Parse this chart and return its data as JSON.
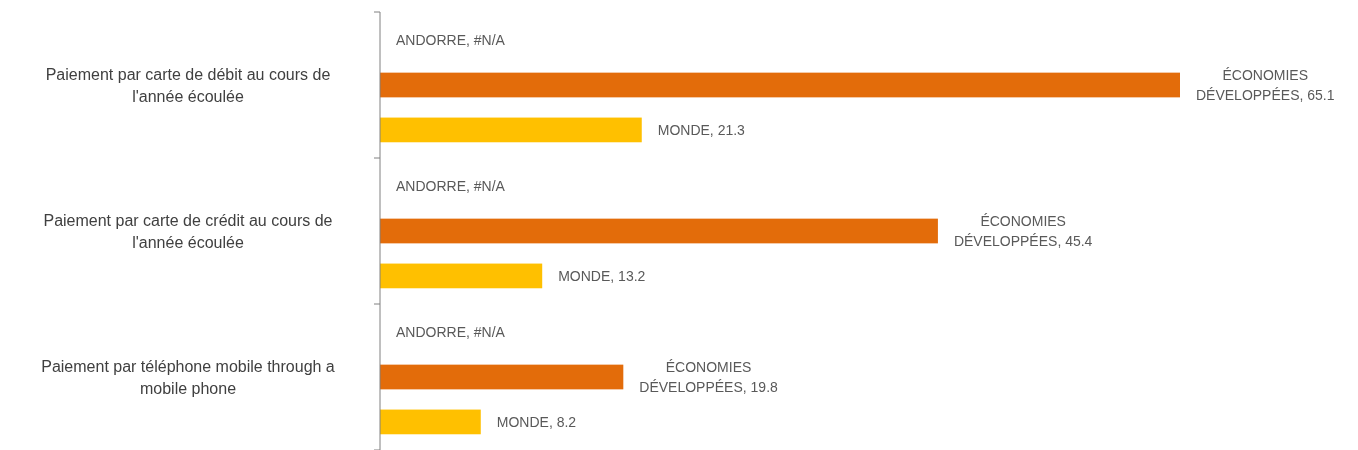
{
  "chart_data": {
    "type": "bar",
    "orientation": "horizontal",
    "categories": [
      "Paiement par carte de débit au cours de l'année écoulée",
      "Paiement par carte de crédit au cours de l'année écoulée",
      "Paiement par téléphone mobile through a mobile phone"
    ],
    "series": [
      {
        "values": [
          null,
          null,
          null
        ],
        "value_labels": [
          "ANDORRE, #N/A",
          "ANDORRE, #N/A",
          "ANDORRE, #N/A"
        ]
      },
      {
        "color": "#e36c0a",
        "values": [
          65.1,
          45.4,
          19.8
        ],
        "value_labels": [
          "ÉCONOMIES DÉVELOPPÉES, 65.1",
          "ÉCONOMIES DÉVELOPPÉES, 45.4",
          "ÉCONOMIES DÉVELOPPÉES, 19.8"
        ]
      },
      {
        "color": "#ffc000",
        "values": [
          21.3,
          13.2,
          8.2
        ],
        "value_labels": [
          "MONDE, 21.3",
          "MONDE, 13.2",
          "MONDE, 8.2"
        ]
      }
    ]
  }
}
